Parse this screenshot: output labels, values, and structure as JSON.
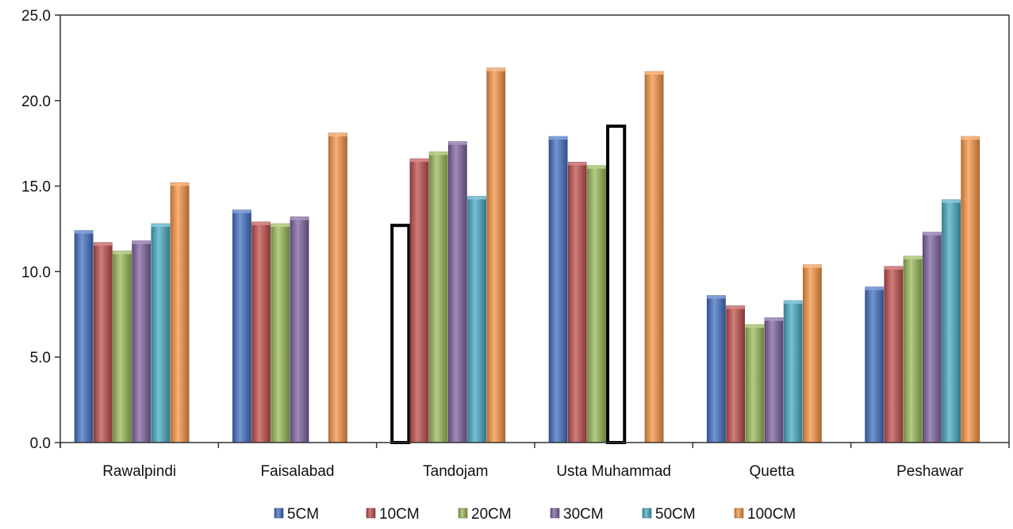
{
  "chart_data": {
    "type": "bar",
    "title": "",
    "xlabel": "",
    "ylabel": "",
    "ylim": [
      0,
      25
    ],
    "y_ticks": [
      "0.0",
      "5.0",
      "10.0",
      "15.0",
      "20.0",
      "25.0"
    ],
    "y_tick_values": [
      0,
      5,
      10,
      15,
      20,
      25
    ],
    "grid": false,
    "legend_position": "bottom",
    "categories": [
      "Rawalpindi",
      "Faisalabad",
      "Tandojam",
      "Usta Muhammad",
      "Quetta",
      "Peshawar"
    ],
    "series": [
      {
        "name": "5CM",
        "color": "#4472c4",
        "values": [
          12.4,
          13.6,
          12.7,
          17.9,
          8.6,
          9.1
        ]
      },
      {
        "name": "10CM",
        "color": "#c0504d",
        "values": [
          11.7,
          12.9,
          16.6,
          16.4,
          8.0,
          10.3
        ]
      },
      {
        "name": "20CM",
        "color": "#9bbb59",
        "values": [
          11.2,
          12.8,
          17.0,
          16.2,
          6.9,
          10.9
        ]
      },
      {
        "name": "30CM",
        "color": "#8064a2",
        "values": [
          11.8,
          13.2,
          17.6,
          18.5,
          7.3,
          12.3
        ]
      },
      {
        "name": "50CM",
        "color": "#4bacc6",
        "values": [
          12.8,
          null,
          14.4,
          null,
          8.3,
          14.2
        ]
      },
      {
        "name": "100CM",
        "color": "#f79646",
        "values": [
          15.2,
          18.1,
          21.9,
          21.7,
          10.4,
          17.9
        ]
      }
    ],
    "highlighted_bars": [
      {
        "category": "Tandojam",
        "series": "5CM"
      },
      {
        "category": "Usta Muhammad",
        "series": "30CM"
      }
    ]
  }
}
